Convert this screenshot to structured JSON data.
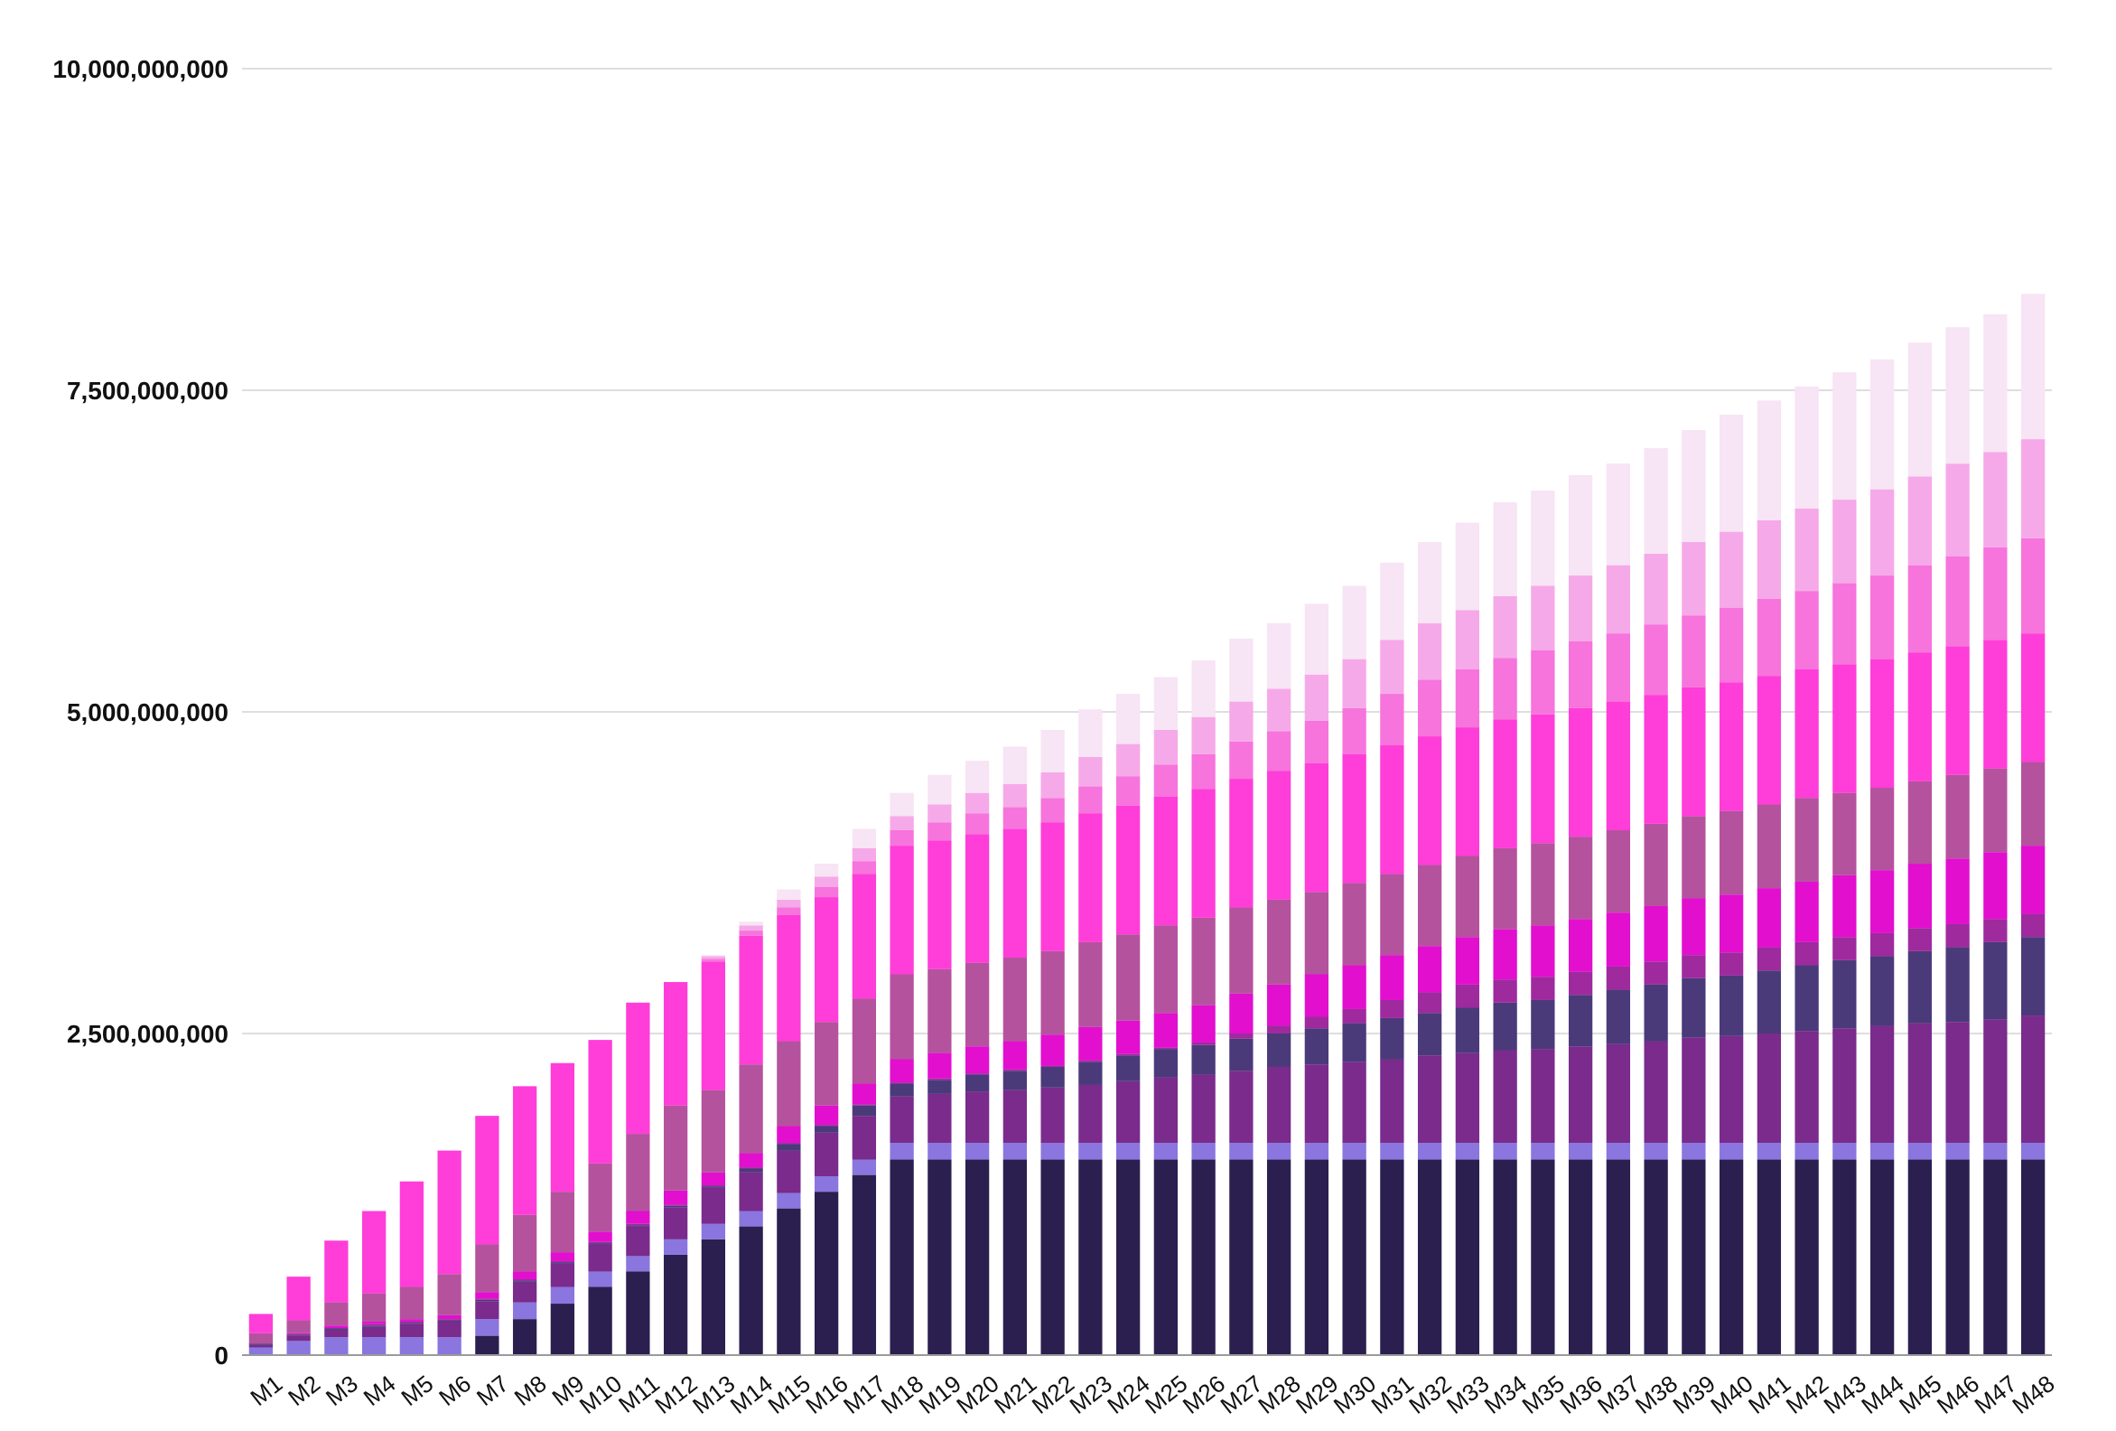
{
  "chart_data": {
    "type": "bar",
    "stacked": true,
    "grid": true,
    "legend": "none",
    "ylim": [
      0,
      10000000000
    ],
    "yticks": [
      0,
      2500000000,
      5000000000,
      7500000000,
      10000000000
    ],
    "ytick_labels": [
      "0",
      "2,500,000,000",
      "5,000,000,000",
      "7,500,000,000",
      "10,000,000,000"
    ],
    "categories": [
      "M1",
      "M2",
      "M3",
      "M4",
      "M5",
      "M6",
      "M7",
      "M8",
      "M9",
      "M10",
      "M11",
      "M12",
      "M13",
      "M14",
      "M15",
      "M16",
      "M17",
      "M18",
      "M19",
      "M20",
      "M21",
      "M22",
      "M23",
      "M24",
      "M25",
      "M26",
      "M27",
      "M28",
      "M29",
      "M30",
      "M31",
      "M32",
      "M33",
      "M34",
      "M35",
      "M36",
      "M37",
      "M38",
      "M39",
      "M40",
      "M41",
      "M42",
      "M43",
      "M44",
      "M45",
      "M46",
      "M47",
      "M48"
    ],
    "series": [
      {
        "color": "#2b1f4f",
        "values": [
          0,
          0,
          0,
          0,
          0,
          0,
          150000000,
          280000000,
          400000000,
          530000000,
          650000000,
          780000000,
          900000000,
          1000000000,
          1140000000,
          1270000000,
          1400000000,
          1520000000,
          1520000000,
          1520000000,
          1520000000,
          1520000000,
          1520000000,
          1520000000,
          1520000000,
          1520000000,
          1520000000,
          1520000000,
          1520000000,
          1520000000,
          1520000000,
          1520000000,
          1520000000,
          1520000000,
          1520000000,
          1520000000,
          1520000000,
          1520000000,
          1520000000,
          1520000000,
          1520000000,
          1520000000,
          1520000000,
          1520000000,
          1520000000,
          1520000000,
          1520000000,
          1520000000
        ]
      },
      {
        "color": "#8a76de",
        "values": [
          60000000,
          110000000,
          140000000,
          140000000,
          140000000,
          140000000,
          130000000,
          130000000,
          130000000,
          120000000,
          120000000,
          120000000,
          120000000,
          120000000,
          120000000,
          120000000,
          120000000,
          130000000,
          130000000,
          130000000,
          130000000,
          130000000,
          130000000,
          130000000,
          130000000,
          130000000,
          130000000,
          130000000,
          130000000,
          130000000,
          130000000,
          130000000,
          130000000,
          130000000,
          130000000,
          130000000,
          130000000,
          130000000,
          130000000,
          130000000,
          130000000,
          130000000,
          130000000,
          130000000,
          130000000,
          130000000,
          130000000,
          130000000
        ]
      },
      {
        "color": "#7a2b8c",
        "values": [
          20000000,
          40000000,
          60000000,
          80000000,
          100000000,
          120000000,
          140000000,
          160000000,
          180000000,
          210000000,
          230000000,
          250000000,
          280000000,
          300000000,
          330000000,
          340000000,
          340000000,
          360000000,
          380000000,
          400000000,
          410000000,
          430000000,
          450000000,
          480000000,
          510000000,
          530000000,
          560000000,
          590000000,
          610000000,
          630000000,
          650000000,
          680000000,
          700000000,
          720000000,
          730000000,
          750000000,
          770000000,
          790000000,
          820000000,
          830000000,
          850000000,
          870000000,
          890000000,
          910000000,
          930000000,
          940000000,
          960000000,
          990000000
        ]
      },
      {
        "color": "#4b3a7a",
        "values": [
          10000000,
          10000000,
          10000000,
          10000000,
          10000000,
          10000000,
          10000000,
          10000000,
          10000000,
          10000000,
          10000000,
          10000000,
          10000000,
          30000000,
          50000000,
          50000000,
          80000000,
          100000000,
          110000000,
          130000000,
          150000000,
          160000000,
          180000000,
          200000000,
          220000000,
          230000000,
          250000000,
          260000000,
          280000000,
          300000000,
          320000000,
          330000000,
          350000000,
          370000000,
          380000000,
          400000000,
          420000000,
          440000000,
          460000000,
          470000000,
          490000000,
          510000000,
          530000000,
          540000000,
          560000000,
          580000000,
          600000000,
          610000000
        ]
      },
      {
        "color": "#9e2a9e",
        "values": [
          0,
          0,
          0,
          10000000,
          10000000,
          10000000,
          10000000,
          10000000,
          10000000,
          10000000,
          10000000,
          10000000,
          10000000,
          10000000,
          10000000,
          10000000,
          10000000,
          10000000,
          10000000,
          10000000,
          10000000,
          10000000,
          10000000,
          10000000,
          10000000,
          20000000,
          40000000,
          60000000,
          90000000,
          110000000,
          140000000,
          160000000,
          180000000,
          180000000,
          180000000,
          180000000,
          180000000,
          180000000,
          180000000,
          180000000,
          180000000,
          180000000,
          180000000,
          180000000,
          180000000,
          180000000,
          180000000,
          180000000
        ]
      },
      {
        "color": "#e20fcf",
        "values": [
          0,
          10000000,
          20000000,
          20000000,
          20000000,
          30000000,
          50000000,
          60000000,
          70000000,
          80000000,
          100000000,
          110000000,
          100000000,
          110000000,
          130000000,
          150000000,
          160000000,
          180000000,
          200000000,
          210000000,
          220000000,
          240000000,
          260000000,
          260000000,
          270000000,
          290000000,
          310000000,
          320000000,
          330000000,
          340000000,
          350000000,
          360000000,
          370000000,
          390000000,
          400000000,
          410000000,
          420000000,
          430000000,
          440000000,
          450000000,
          460000000,
          470000000,
          480000000,
          490000000,
          500000000,
          510000000,
          520000000,
          530000000
        ]
      },
      {
        "color": "#b5529e",
        "values": [
          80000000,
          100000000,
          180000000,
          220000000,
          250000000,
          320000000,
          370000000,
          440000000,
          470000000,
          530000000,
          600000000,
          660000000,
          640000000,
          690000000,
          660000000,
          650000000,
          660000000,
          660000000,
          650000000,
          650000000,
          650000000,
          650000000,
          660000000,
          670000000,
          680000000,
          680000000,
          670000000,
          660000000,
          640000000,
          640000000,
          630000000,
          630000000,
          630000000,
          630000000,
          640000000,
          640000000,
          640000000,
          640000000,
          640000000,
          650000000,
          650000000,
          650000000,
          640000000,
          640000000,
          640000000,
          650000000,
          650000000,
          650000000
        ]
      },
      {
        "color": "#ff3dd8",
        "values": [
          150000000,
          340000000,
          480000000,
          640000000,
          820000000,
          960000000,
          1000000000,
          1000000000,
          1000000000,
          960000000,
          1020000000,
          960000000,
          1000000000,
          1000000000,
          980000000,
          970000000,
          970000000,
          1000000000,
          1000000000,
          1000000000,
          1000000000,
          1000000000,
          1000000000,
          1000000000,
          1000000000,
          1000000000,
          1000000000,
          1000000000,
          1000000000,
          1000000000,
          1000000000,
          1000000000,
          1000000000,
          1000000000,
          1000000000,
          1000000000,
          1000000000,
          1000000000,
          1000000000,
          1000000000,
          1000000000,
          1000000000,
          1000000000,
          1000000000,
          1000000000,
          1000000000,
          1000000000,
          1000000000
        ]
      },
      {
        "color": "#f674dc",
        "values": [
          0,
          0,
          0,
          0,
          0,
          0,
          0,
          0,
          0,
          0,
          0,
          0,
          20000000,
          40000000,
          60000000,
          80000000,
          100000000,
          120000000,
          140000000,
          160000000,
          170000000,
          190000000,
          210000000,
          230000000,
          250000000,
          270000000,
          290000000,
          310000000,
          330000000,
          360000000,
          400000000,
          440000000,
          450000000,
          480000000,
          500000000,
          520000000,
          530000000,
          550000000,
          560000000,
          580000000,
          600000000,
          610000000,
          630000000,
          650000000,
          680000000,
          700000000,
          720000000,
          740000000
        ]
      },
      {
        "color": "#f6a9e8",
        "values": [
          0,
          0,
          0,
          0,
          0,
          0,
          0,
          0,
          0,
          0,
          0,
          0,
          20000000,
          40000000,
          60000000,
          80000000,
          100000000,
          110000000,
          140000000,
          160000000,
          180000000,
          200000000,
          230000000,
          250000000,
          270000000,
          290000000,
          310000000,
          330000000,
          360000000,
          380000000,
          420000000,
          440000000,
          460000000,
          480000000,
          500000000,
          510000000,
          530000000,
          550000000,
          570000000,
          590000000,
          610000000,
          640000000,
          650000000,
          670000000,
          690000000,
          720000000,
          740000000,
          770000000
        ]
      },
      {
        "color": "#f7e4f4",
        "values": [
          0,
          0,
          0,
          0,
          0,
          0,
          0,
          0,
          0,
          0,
          0,
          0,
          10000000,
          30000000,
          80000000,
          100000000,
          150000000,
          180000000,
          230000000,
          250000000,
          290000000,
          330000000,
          370000000,
          390000000,
          410000000,
          440000000,
          490000000,
          510000000,
          550000000,
          570000000,
          600000000,
          630000000,
          680000000,
          730000000,
          740000000,
          780000000,
          790000000,
          820000000,
          870000000,
          910000000,
          930000000,
          950000000,
          990000000,
          1010000000,
          1040000000,
          1060000000,
          1070000000,
          1130000000
        ]
      }
    ]
  }
}
